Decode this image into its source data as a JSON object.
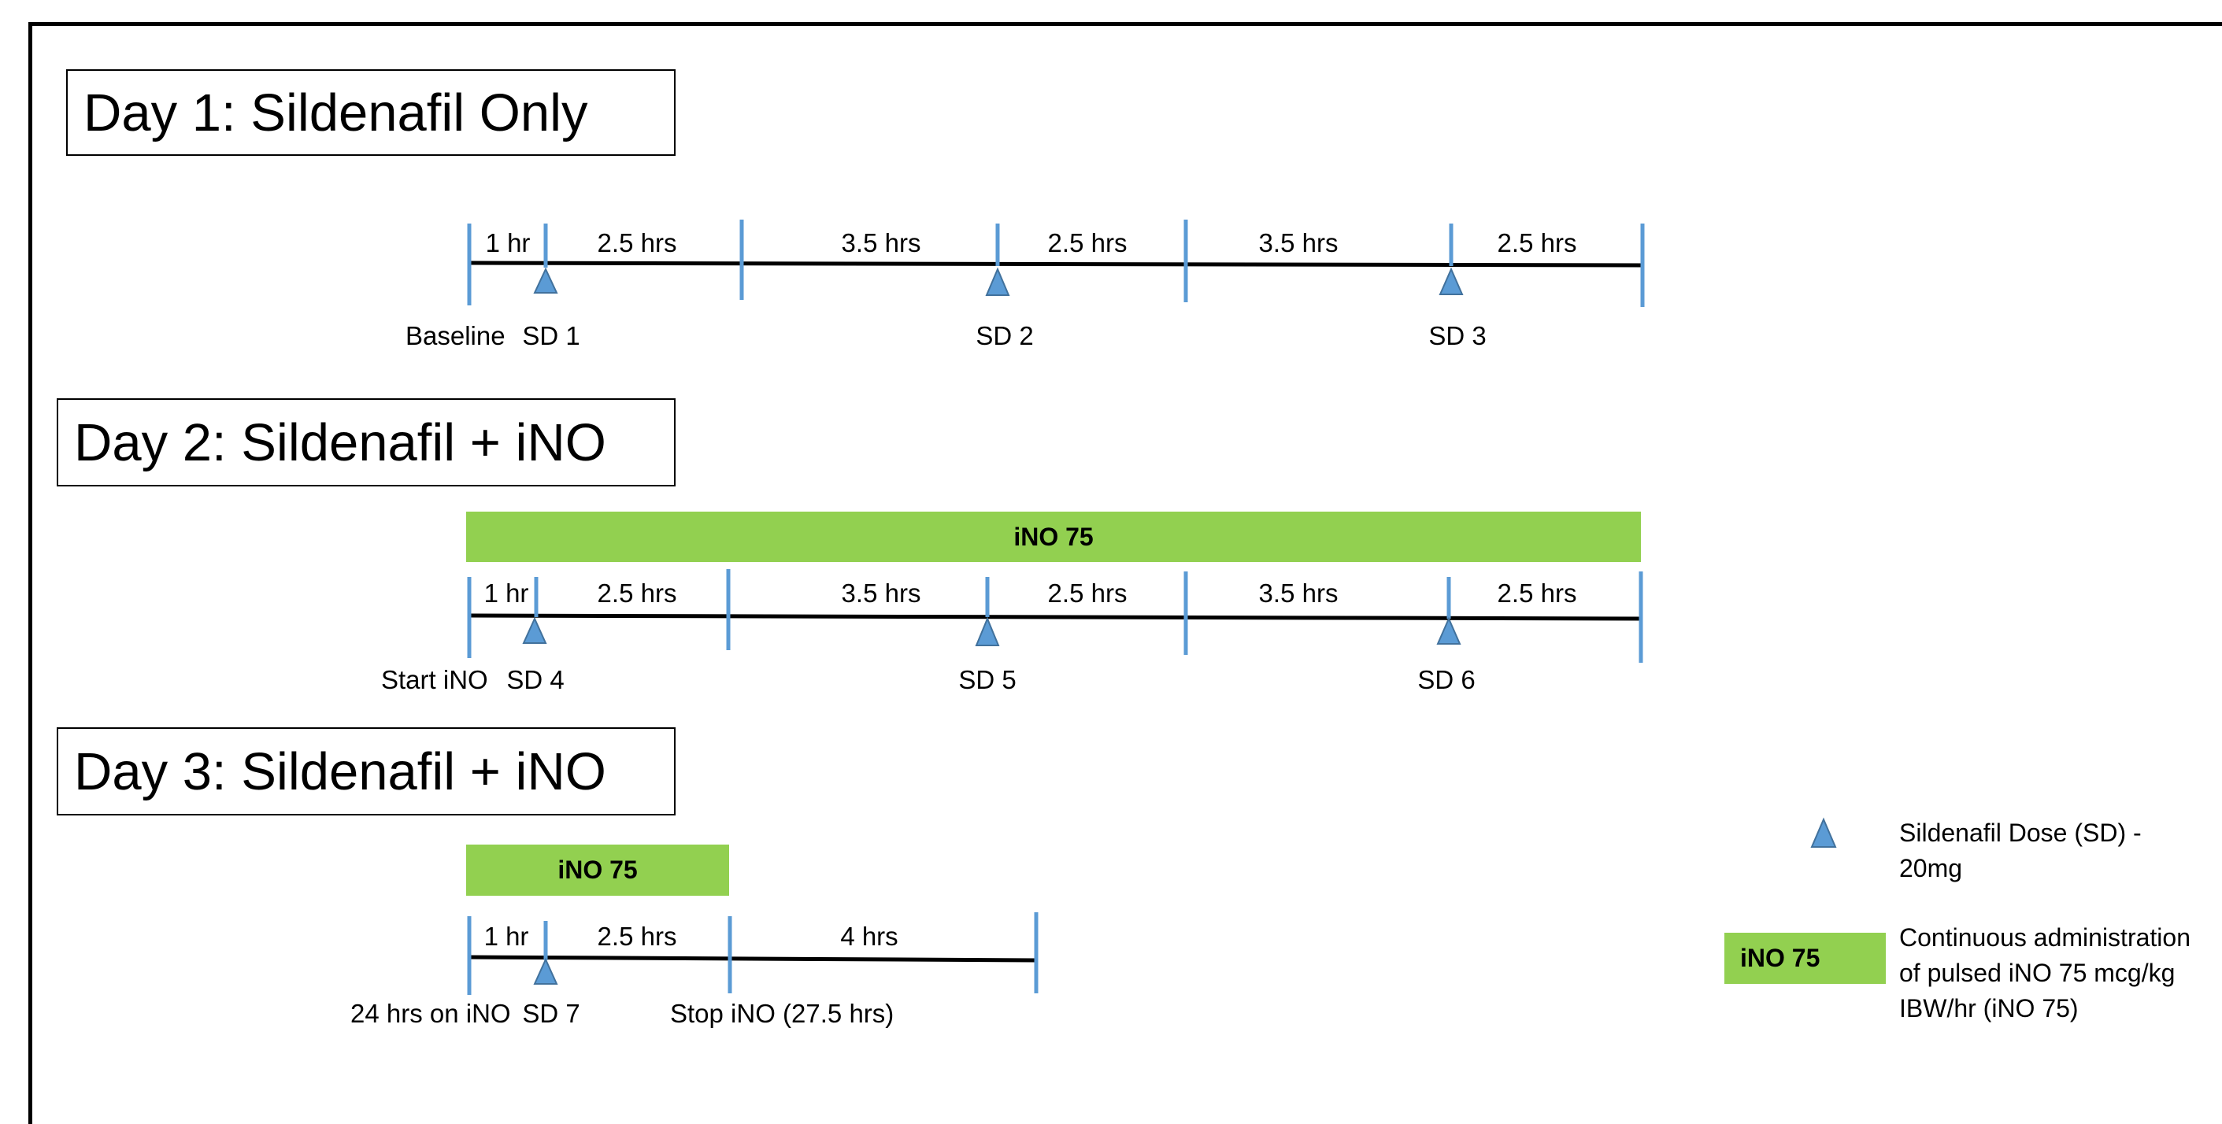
{
  "colors": {
    "tick": "#5b9bd5",
    "triangle_fill": "#5b9bd5",
    "triangle_stroke": "#41719c",
    "ino_bar": "#92d050",
    "line": "#000000"
  },
  "day1": {
    "title": "Day 1: Sildenafil Only",
    "segments": [
      "1 hr",
      "2.5 hrs",
      "3.5 hrs",
      "2.5 hrs",
      "3.5 hrs",
      "2.5 hrs"
    ],
    "events": {
      "baseline": "Baseline",
      "sd1": "SD 1",
      "sd2": "SD 2",
      "sd3": "SD 3"
    }
  },
  "day2": {
    "title": "Day 2: Sildenafil + iNO",
    "bar_label": "iNO 75",
    "segments": [
      "1 hr",
      "2.5 hrs",
      "3.5 hrs",
      "2.5 hrs",
      "3.5 hrs",
      "2.5 hrs"
    ],
    "events": {
      "start": "Start iNO",
      "sd4": "SD 4",
      "sd5": "SD 5",
      "sd6": "SD 6"
    }
  },
  "day3": {
    "title": "Day 3: Sildenafil + iNO",
    "bar_label": "iNO 75",
    "segments": [
      "1 hr",
      "2.5 hrs",
      "4 hrs"
    ],
    "events": {
      "start": "24 hrs on iNO",
      "sd7": "SD 7",
      "stop": "Stop iNO (27.5 hrs)"
    }
  },
  "legend": {
    "triangle_text": "Sildenafil Dose (SD) - 20mg",
    "bar_label": "iNO 75",
    "bar_text": "Continuous administration of pulsed iNO 75 mcg/kg IBW/hr (iNO 75)"
  }
}
